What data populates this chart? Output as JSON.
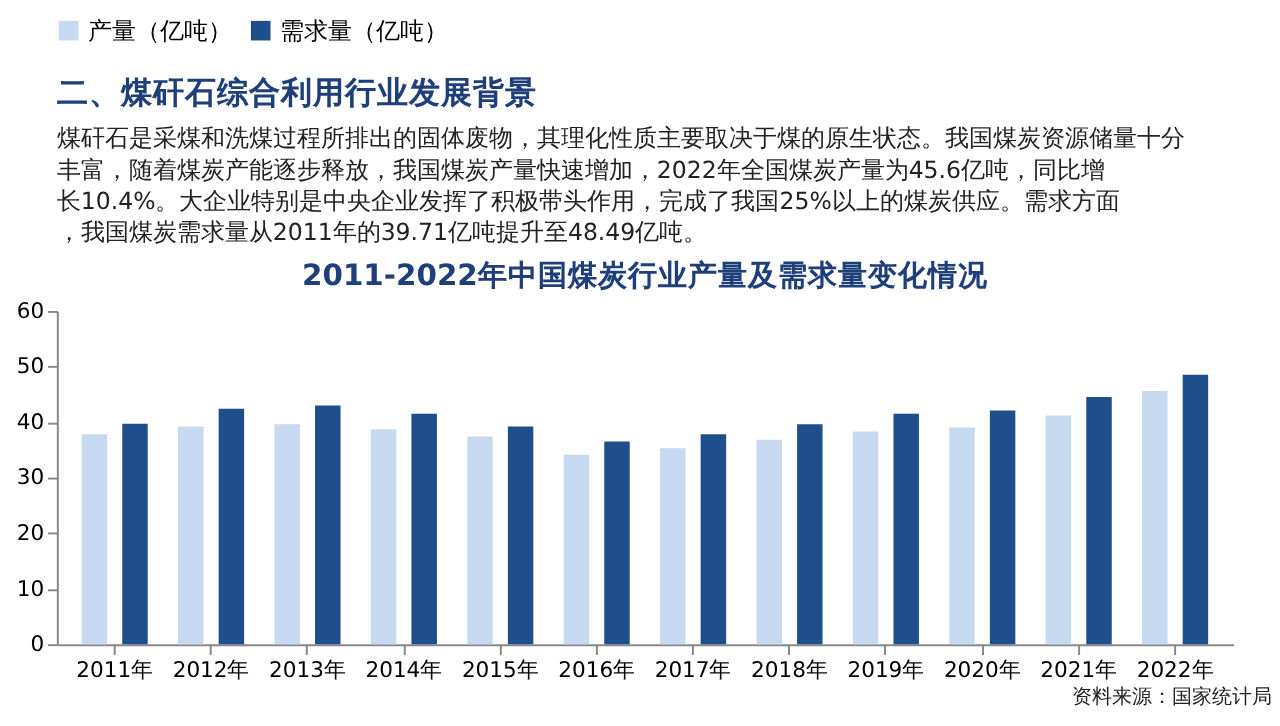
{
  "chart_data": {
    "type": "bar",
    "title": "2011-2022年中国煤炭行业产量及需求量变化情况",
    "annotations": [
      "二、煤矸石综合利用行业发展背景",
      "煤矸石是采煤和洗煤过程所排出的固体废物，其理化性质主要取决于煤的原生状态。我国煤炭资源储量十分丰富，随着煤炭产能逐步释放，我国煤炭产量快速增加，2022年全国煤炭产量为45.6亿吨，同比增长10.4%。大企业特别是中央企业发挥了积极带头作用，完成了我国25%以上的煤炭供应。需求方面，我国煤炭需求量从2011年的39.71亿吨提升至48.49亿吨。",
      "资料来源：国家统计局"
    ],
    "categories": [
      "2011年",
      "2012年",
      "2013年",
      "2014年",
      "2015年",
      "2016年",
      "2017年",
      "2018年",
      "2019年",
      "2020年",
      "2021年",
      "2022年"
    ],
    "series": [
      {
        "name": "产量（亿吨）",
        "color": "#c6d9f0",
        "values": [
          37.8,
          39.2,
          39.6,
          38.7,
          37.4,
          34.1,
          35.3,
          36.8,
          38.3,
          39.0,
          41.2,
          45.6
        ]
      },
      {
        "name": "需求量（亿吨）",
        "color": "#1f4e8c",
        "values": [
          39.7,
          42.4,
          43.0,
          41.5,
          39.2,
          36.5,
          37.8,
          39.6,
          41.5,
          42.1,
          44.5,
          48.5
        ]
      }
    ],
    "ylim": [
      0,
      60
    ],
    "yticks": [
      0,
      10,
      20,
      30,
      40,
      50,
      60
    ],
    "grid": false,
    "legend": "top"
  }
}
